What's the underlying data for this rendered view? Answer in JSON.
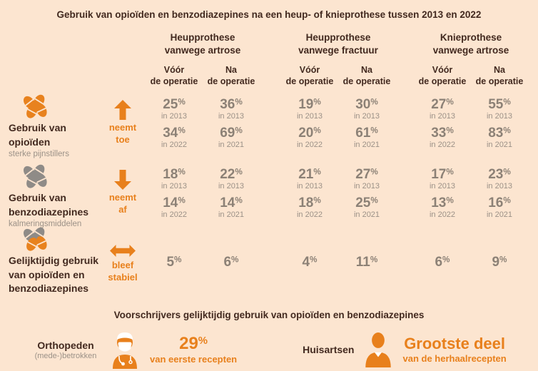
{
  "title": "Gebruik van opioïden en benzodiazepines na een heup- of knieprothese tussen 2013 en 2022",
  "colors": {
    "background": "#fce5d0",
    "accent_orange": "#e8801c",
    "dark_text": "#42291f",
    "number_gray": "#8c8176",
    "pill_gray": "#8f8b87"
  },
  "table": {
    "groups": [
      {
        "line1": "Heupprothese",
        "line2": "vanwege artrose"
      },
      {
        "line1": "Heupprothese",
        "line2": "vanwege fractuur"
      },
      {
        "line1": "Knieprothese",
        "line2": "vanwege artrose"
      }
    ],
    "columns": {
      "before": [
        "Vóór",
        "de operatie"
      ],
      "after": [
        "Na",
        "de operatie"
      ]
    },
    "rows": [
      {
        "label": "Gebruik van opioïden",
        "sublabel": "sterke pijnstillers",
        "trend": {
          "direction": "up",
          "line1": "neemt",
          "line2": "toe"
        },
        "cells": [
          {
            "value1": "25%",
            "year1": "in 2013",
            "value2": "34%",
            "year2": "in 2022"
          },
          {
            "value1": "36%",
            "year1": "in 2013",
            "value2": "69%",
            "year2": "in 2021"
          },
          {
            "value1": "19%",
            "year1": "in 2013",
            "value2": "20%",
            "year2": "in 2022"
          },
          {
            "value1": "30%",
            "year1": "in 2013",
            "value2": "61%",
            "year2": "in 2021"
          },
          {
            "value1": "27%",
            "year1": "in 2013",
            "value2": "33%",
            "year2": "in 2022"
          },
          {
            "value1": "55%",
            "year1": "in 2013",
            "value2": "83%",
            "year2": "in 2021"
          }
        ]
      },
      {
        "label": "Gebruik van benzodiazepines",
        "sublabel": "kalmeringsmiddelen",
        "trend": {
          "direction": "down",
          "line1": "neemt",
          "line2": "af"
        },
        "cells": [
          {
            "value1": "18%",
            "year1": "in 2013",
            "value2": "14%",
            "year2": "in 2022"
          },
          {
            "value1": "22%",
            "year1": "in 2013",
            "value2": "14%",
            "year2": "in 2021"
          },
          {
            "value1": "21%",
            "year1": "in 2013",
            "value2": "18%",
            "year2": "in 2022"
          },
          {
            "value1": "27%",
            "year1": "in 2013",
            "value2": "25%",
            "year2": "in 2021"
          },
          {
            "value1": "17%",
            "year1": "in 2013",
            "value2": "13%",
            "year2": "in 2022"
          },
          {
            "value1": "23%",
            "year1": "in 2013",
            "value2": "16%",
            "year2": "in 2021"
          }
        ]
      },
      {
        "label": "Gelijktijdig gebruik van opioïden en benzodiazepines",
        "sublabel": "",
        "trend": {
          "direction": "stable",
          "line1": "bleef",
          "line2": "stabiel"
        },
        "values": [
          "5%",
          "6%",
          "4%",
          "11%",
          "6%",
          "9%"
        ]
      }
    ]
  },
  "footer": {
    "heading": "Voorschrijvers gelijktijdig gebruik van opioïden en benzodiazepines",
    "left": {
      "label": "Orthopeden",
      "sublabel": "(mede-)betrokken",
      "value": "29%",
      "caption": "van eerste recepten"
    },
    "right": {
      "label": "Huisartsen",
      "value": "Grootste deel",
      "caption": "van de herhaalrecepten"
    }
  },
  "chart_data": {
    "type": "table",
    "title": "Gebruik van opioïden en benzodiazepines na een heup- of knieprothese tussen 2013 en 2022",
    "column_groups": [
      "Heupprothese vanwege artrose",
      "Heupprothese vanwege fractuur",
      "Knieprothese vanwege artrose"
    ],
    "sub_columns": [
      "Vóór de operatie",
      "Na de operatie"
    ],
    "rows": [
      {
        "label": "Gebruik van opioïden (sterke pijnstillers)",
        "trend": "neemt toe",
        "data": [
          {
            "group": "Heupprothese vanwege artrose",
            "sub": "Vóór de operatie",
            "points": [
              {
                "year": 2013,
                "pct": 25
              },
              {
                "year": 2022,
                "pct": 34
              }
            ]
          },
          {
            "group": "Heupprothese vanwege artrose",
            "sub": "Na de operatie",
            "points": [
              {
                "year": 2013,
                "pct": 36
              },
              {
                "year": 2021,
                "pct": 69
              }
            ]
          },
          {
            "group": "Heupprothese vanwege fractuur",
            "sub": "Vóór de operatie",
            "points": [
              {
                "year": 2013,
                "pct": 19
              },
              {
                "year": 2022,
                "pct": 20
              }
            ]
          },
          {
            "group": "Heupprothese vanwege fractuur",
            "sub": "Na de operatie",
            "points": [
              {
                "year": 2013,
                "pct": 30
              },
              {
                "year": 2021,
                "pct": 61
              }
            ]
          },
          {
            "group": "Knieprothese vanwege artrose",
            "sub": "Vóór de operatie",
            "points": [
              {
                "year": 2013,
                "pct": 27
              },
              {
                "year": 2022,
                "pct": 33
              }
            ]
          },
          {
            "group": "Knieprothese vanwege artrose",
            "sub": "Na de operatie",
            "points": [
              {
                "year": 2013,
                "pct": 55
              },
              {
                "year": 2021,
                "pct": 83
              }
            ]
          }
        ]
      },
      {
        "label": "Gebruik van benzodiazepines (kalmeringsmiddelen)",
        "trend": "neemt af",
        "data": [
          {
            "group": "Heupprothese vanwege artrose",
            "sub": "Vóór de operatie",
            "points": [
              {
                "year": 2013,
                "pct": 18
              },
              {
                "year": 2022,
                "pct": 14
              }
            ]
          },
          {
            "group": "Heupprothese vanwege artrose",
            "sub": "Na de operatie",
            "points": [
              {
                "year": 2013,
                "pct": 22
              },
              {
                "year": 2021,
                "pct": 14
              }
            ]
          },
          {
            "group": "Heupprothese vanwege fractuur",
            "sub": "Vóór de operatie",
            "points": [
              {
                "year": 2013,
                "pct": 21
              },
              {
                "year": 2022,
                "pct": 18
              }
            ]
          },
          {
            "group": "Heupprothese vanwege fractuur",
            "sub": "Na de operatie",
            "points": [
              {
                "year": 2013,
                "pct": 27
              },
              {
                "year": 2021,
                "pct": 25
              }
            ]
          },
          {
            "group": "Knieprothese vanwege artrose",
            "sub": "Vóór de operatie",
            "points": [
              {
                "year": 2013,
                "pct": 17
              },
              {
                "year": 2022,
                "pct": 13
              }
            ]
          },
          {
            "group": "Knieprothese vanwege artrose",
            "sub": "Na de operatie",
            "points": [
              {
                "year": 2013,
                "pct": 23
              },
              {
                "year": 2021,
                "pct": 16
              }
            ]
          }
        ]
      },
      {
        "label": "Gelijktijdig gebruik van opioïden en benzodiazepines",
        "trend": "bleef stabiel",
        "data": [
          {
            "group": "Heupprothese vanwege artrose",
            "sub": "Vóór de operatie",
            "pct": 5
          },
          {
            "group": "Heupprothese vanwege artrose",
            "sub": "Na de operatie",
            "pct": 6
          },
          {
            "group": "Heupprothese vanwege fractuur",
            "sub": "Vóór de operatie",
            "pct": 4
          },
          {
            "group": "Heupprothese vanwege fractuur",
            "sub": "Na de operatie",
            "pct": 11
          },
          {
            "group": "Knieprothese vanwege artrose",
            "sub": "Vóór de operatie",
            "pct": 6
          },
          {
            "group": "Knieprothese vanwege artrose",
            "sub": "Na de operatie",
            "pct": 9
          }
        ]
      }
    ],
    "footer_stats": [
      {
        "label": "Orthopeden (mede-)betrokken",
        "value": "29% van eerste recepten"
      },
      {
        "label": "Huisartsen",
        "value": "Grootste deel van de herhaalrecepten"
      }
    ]
  }
}
